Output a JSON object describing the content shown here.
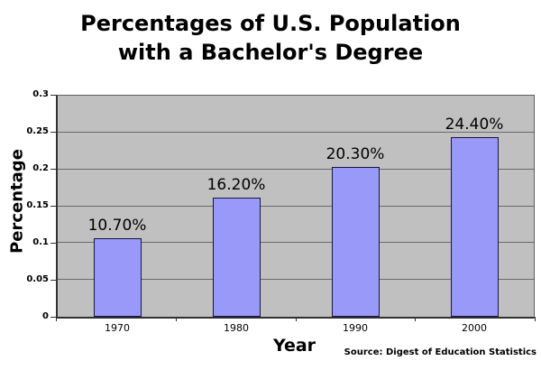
{
  "title": {
    "line1": "Percentages of U.S. Population",
    "line2": "with a Bachelor's Degree"
  },
  "chart_data": {
    "type": "bar",
    "title": "Percentages of U.S. Population with a Bachelor's Degree",
    "categories": [
      "1970",
      "1980",
      "1990",
      "2000"
    ],
    "values": [
      0.107,
      0.162,
      0.203,
      0.244
    ],
    "bar_labels": [
      "10.70%",
      "16.20%",
      "20.30%",
      "24.40%"
    ],
    "xlabel": "Year",
    "ylabel": "Percentage",
    "ylim": [
      0,
      0.3
    ],
    "ytick_step": 0.05,
    "ytick_labels": [
      "0",
      "0.05",
      "0.1",
      "0.15",
      "0.2",
      "0.25",
      "0.3"
    ],
    "grid": true,
    "legend": false,
    "colors": {
      "bar_fill": "#9999FA",
      "bar_border": "#16163C",
      "plot_background": "#C0C0C0",
      "gridline": "#6A6A6A",
      "axis": "#303030",
      "text": "#000000",
      "page_background": "#FFFFFF"
    }
  },
  "source_note": "Source: Digest of Education Statistics"
}
